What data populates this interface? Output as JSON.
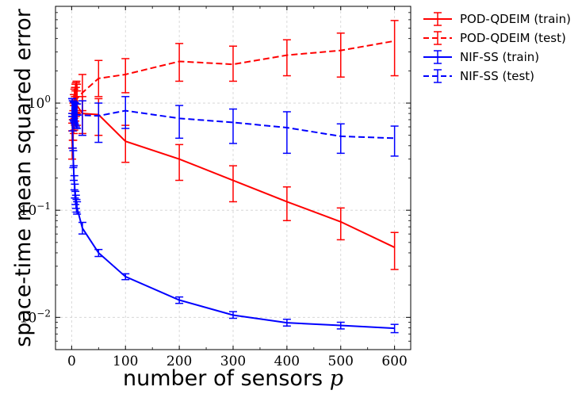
{
  "chart_data": {
    "type": "line",
    "xlabel": "number of sensors",
    "xlabel_symbol": "p",
    "ylabel": "space-time mean squared error",
    "yscale": "log",
    "xlim": [
      -30,
      630
    ],
    "ylim": [
      0.005,
      8
    ],
    "grid": true,
    "legend_position": "outside-right-top",
    "x_ticks": [
      0,
      100,
      200,
      300,
      400,
      500,
      600
    ],
    "y_ticks": [
      {
        "value": 0.01,
        "base": "10",
        "exp": "−2"
      },
      {
        "value": 0.1,
        "base": "10",
        "exp": "−1"
      },
      {
        "value": 1,
        "base": "10",
        "exp": "0"
      }
    ],
    "series": [
      {
        "name": "POD-QDEIM (train)",
        "color": "#ff0000",
        "dash": "solid",
        "x": [
          1,
          2,
          3,
          4,
          5,
          6,
          7,
          8,
          9,
          10,
          20,
          50,
          100,
          200,
          300,
          400,
          500,
          600
        ],
        "y": [
          0.42,
          0.55,
          0.65,
          0.75,
          0.82,
          0.9,
          1.0,
          1.1,
          1.15,
          0.95,
          0.8,
          0.78,
          0.44,
          0.3,
          0.19,
          0.12,
          0.078,
          0.045
        ],
        "err_low": [
          0.3,
          0.38,
          0.45,
          0.52,
          0.56,
          0.62,
          0.68,
          0.75,
          0.8,
          0.62,
          0.52,
          0.5,
          0.28,
          0.19,
          0.12,
          0.08,
          0.053,
          0.028
        ],
        "err_high": [
          0.55,
          0.7,
          0.85,
          0.95,
          1.05,
          1.15,
          1.3,
          1.4,
          1.5,
          1.3,
          1.15,
          1.1,
          0.62,
          0.41,
          0.26,
          0.165,
          0.105,
          0.062
        ]
      },
      {
        "name": "POD-QDEIM (test)",
        "color": "#ff0000",
        "dash": "dashed",
        "x": [
          1,
          2,
          3,
          4,
          5,
          6,
          7,
          8,
          9,
          10,
          20,
          50,
          100,
          200,
          300,
          400,
          500,
          600
        ],
        "y": [
          0.5,
          0.6,
          0.75,
          0.9,
          1.0,
          1.05,
          1.1,
          1.12,
          1.15,
          1.1,
          1.25,
          1.7,
          1.85,
          2.45,
          2.3,
          2.8,
          3.1,
          3.8
        ],
        "err_low": [
          0.38,
          0.45,
          0.55,
          0.65,
          0.72,
          0.78,
          0.8,
          0.82,
          0.85,
          0.8,
          0.85,
          1.15,
          1.25,
          1.6,
          1.6,
          1.8,
          1.75,
          1.8
        ],
        "err_high": [
          0.65,
          0.8,
          1.0,
          1.2,
          1.35,
          1.4,
          1.5,
          1.55,
          1.6,
          1.5,
          1.85,
          2.5,
          2.6,
          3.6,
          3.4,
          3.9,
          4.5,
          5.9
        ]
      },
      {
        "name": "NIF-SS (train)",
        "color": "#0000ff",
        "dash": "solid",
        "x": [
          1,
          2,
          3,
          4,
          5,
          6,
          7,
          8,
          9,
          10,
          20,
          50,
          100,
          200,
          300,
          400,
          500,
          600
        ],
        "y": [
          0.9,
          0.45,
          0.3,
          0.22,
          0.18,
          0.15,
          0.13,
          0.12,
          0.11,
          0.105,
          0.068,
          0.04,
          0.024,
          0.0145,
          0.0105,
          0.0089,
          0.0084,
          0.0079
        ],
        "err_low": [
          0.75,
          0.38,
          0.25,
          0.19,
          0.155,
          0.13,
          0.113,
          0.104,
          0.096,
          0.092,
          0.06,
          0.037,
          0.0225,
          0.0135,
          0.0098,
          0.0083,
          0.0078,
          0.0072
        ],
        "err_high": [
          1.1,
          0.55,
          0.36,
          0.26,
          0.21,
          0.175,
          0.15,
          0.138,
          0.126,
          0.12,
          0.077,
          0.043,
          0.0255,
          0.0155,
          0.0113,
          0.0096,
          0.009,
          0.0086
        ]
      },
      {
        "name": "NIF-SS (test)",
        "color": "#0000ff",
        "dash": "dashed",
        "x": [
          1,
          2,
          3,
          4,
          5,
          6,
          7,
          8,
          9,
          10,
          20,
          50,
          100,
          200,
          300,
          400,
          500,
          600
        ],
        "y": [
          0.95,
          0.9,
          0.88,
          0.85,
          0.85,
          0.82,
          0.8,
          0.8,
          0.78,
          0.78,
          0.77,
          0.76,
          0.85,
          0.72,
          0.66,
          0.59,
          0.49,
          0.47
        ],
        "err_low": [
          0.8,
          0.75,
          0.7,
          0.68,
          0.66,
          0.64,
          0.62,
          0.6,
          0.58,
          0.58,
          0.5,
          0.43,
          0.58,
          0.47,
          0.42,
          0.34,
          0.34,
          0.32
        ],
        "err_high": [
          1.1,
          1.05,
          1.05,
          1.02,
          1.02,
          1.0,
          1.0,
          0.98,
          0.98,
          0.98,
          1.05,
          1.0,
          1.15,
          0.95,
          0.88,
          0.83,
          0.64,
          0.61
        ]
      }
    ]
  }
}
